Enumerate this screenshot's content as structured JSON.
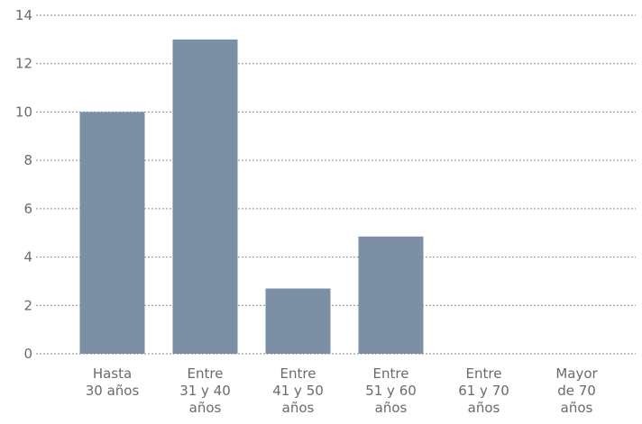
{
  "colors": {
    "bar": "#7b8fa5",
    "grid": "#8a8a8a",
    "text": "#6b6b6b"
  },
  "chart_data": {
    "type": "bar",
    "categories": [
      [
        "Hasta",
        "30 años"
      ],
      [
        "Entre",
        "31 y 40",
        "años"
      ],
      [
        "Entre",
        "41 y 50",
        "años"
      ],
      [
        "Entre",
        "51 y 60",
        "años"
      ],
      [
        "Entre",
        "61 y 70",
        "años"
      ],
      [
        "Mayor",
        "de 70",
        "años"
      ]
    ],
    "values": [
      10,
      13,
      2.7,
      4.85,
      0,
      0
    ],
    "ylim": [
      0,
      14
    ],
    "yticks": [
      0,
      2,
      4,
      6,
      8,
      10,
      12,
      14
    ],
    "grid": "horizontal dotted",
    "title": "",
    "xlabel": "",
    "ylabel": ""
  }
}
